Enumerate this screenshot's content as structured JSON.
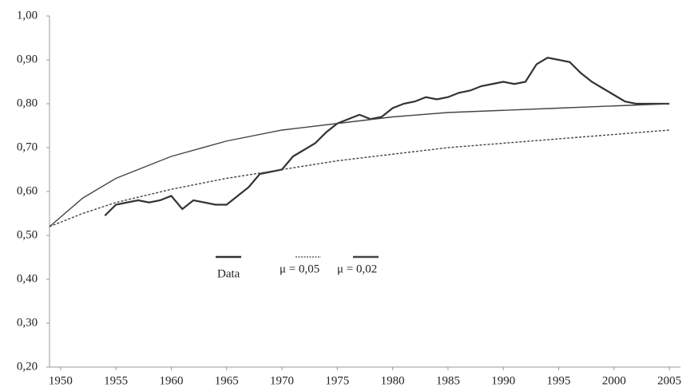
{
  "chart_data": {
    "type": "line",
    "xlim": [
      1949,
      2006
    ],
    "xticks": [
      1950,
      1955,
      1960,
      1965,
      1970,
      1975,
      1980,
      1985,
      1990,
      1995,
      2000,
      2005
    ],
    "ylim": [
      0.2,
      1.0
    ],
    "yticks": [
      {
        "value": 0.2,
        "label": "0,20"
      },
      {
        "value": 0.3,
        "label": "0,30"
      },
      {
        "value": 0.4,
        "label": "0,40"
      },
      {
        "value": 0.5,
        "label": "0,50"
      },
      {
        "value": 0.6,
        "label": "0,60"
      },
      {
        "value": 0.7,
        "label": "0,70"
      },
      {
        "value": 0.8,
        "label": "0,80"
      },
      {
        "value": 0.9,
        "label": "0,90"
      },
      {
        "value": 1.0,
        "label": "1,00"
      }
    ],
    "grid": false,
    "series": [
      {
        "name": "Data",
        "color": "#333333",
        "dash": false,
        "x": [
          1954,
          1955,
          1956,
          1957,
          1958,
          1959,
          1960,
          1961,
          1962,
          1963,
          1964,
          1965,
          1966,
          1967,
          1968,
          1969,
          1970,
          1971,
          1972,
          1973,
          1974,
          1975,
          1976,
          1977,
          1978,
          1979,
          1980,
          1981,
          1982,
          1983,
          1984,
          1985,
          1986,
          1987,
          1988,
          1989,
          1990,
          1991,
          1992,
          1993,
          1994,
          1995,
          1996,
          1997,
          1998,
          1999,
          2000,
          2001,
          2002,
          2003,
          2004,
          2005
        ],
        "values": [
          0.545,
          0.57,
          0.575,
          0.58,
          0.575,
          0.58,
          0.59,
          0.56,
          0.58,
          0.575,
          0.57,
          0.57,
          0.59,
          0.61,
          0.64,
          0.645,
          0.65,
          0.68,
          0.695,
          0.71,
          0.735,
          0.755,
          0.765,
          0.775,
          0.765,
          0.77,
          0.79,
          0.8,
          0.805,
          0.815,
          0.81,
          0.815,
          0.825,
          0.83,
          0.84,
          0.845,
          0.85,
          0.845,
          0.85,
          0.89,
          0.905,
          0.9,
          0.895,
          0.87,
          0.85,
          0.835,
          0.82,
          0.805,
          0.8,
          0.8,
          0.8,
          0.8
        ]
      },
      {
        "name": "μ = 0,05",
        "color": "#444444",
        "dash": true,
        "x": [
          1949,
          1952,
          1955,
          1960,
          1965,
          1970,
          1975,
          1980,
          1985,
          1990,
          1995,
          2000,
          2005
        ],
        "values": [
          0.52,
          0.55,
          0.575,
          0.605,
          0.63,
          0.65,
          0.67,
          0.685,
          0.7,
          0.71,
          0.72,
          0.73,
          0.74
        ]
      },
      {
        "name": "μ = 0,02",
        "color": "#444444",
        "dash": false,
        "x": [
          1949,
          1952,
          1955,
          1960,
          1965,
          1970,
          1975,
          1980,
          1985,
          1990,
          1995,
          2000,
          2005
        ],
        "values": [
          0.52,
          0.585,
          0.63,
          0.68,
          0.715,
          0.74,
          0.755,
          0.77,
          0.78,
          0.785,
          0.79,
          0.795,
          0.8
        ]
      }
    ]
  }
}
